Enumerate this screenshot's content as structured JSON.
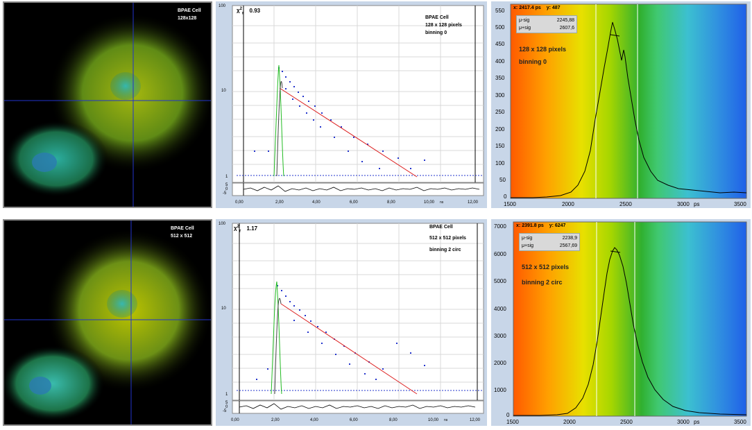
{
  "rows": [
    {
      "image": {
        "title": "BPAE Cell",
        "subtitle": "128x128"
      },
      "decay": {
        "chi_label": "χ",
        "chi_sub": "r",
        "chi_sup": "2",
        "chi_value": "0.93",
        "info": [
          "BPAE Cell",
          "128 x 128 pixels",
          "binning 0"
        ],
        "y_ticks": [
          "100",
          "10",
          "1"
        ],
        "res_ticks": [
          "5",
          "0",
          "-5"
        ],
        "x_ticks": [
          "0,00",
          "2,00",
          "4,00",
          "6,00",
          "8,00",
          "10,00",
          "12,00"
        ],
        "x_unit": "ns"
      },
      "hist": {
        "cursor_x_label": "x:",
        "cursor_x": "2417.4",
        "cursor_x_unit": "ps",
        "cursor_y_label": "y:",
        "cursor_y": "487",
        "mu_minus_label": "μ-sig",
        "mu_minus": "2245,88",
        "mu_plus_label": "μ+sig",
        "mu_plus": "2607,6",
        "title1": "128 x 128 pixels",
        "title2": "binning 0",
        "y_ticks": [
          "550",
          "500",
          "450",
          "400",
          "350",
          "300",
          "250",
          "200",
          "150",
          "100",
          "50",
          "0"
        ],
        "x_ticks": [
          "1500",
          "2000",
          "2500",
          "3000",
          "3500"
        ],
        "x_unit": "ps"
      }
    },
    {
      "image": {
        "title": "BPAE Cell",
        "subtitle": "512 x 512"
      },
      "decay": {
        "chi_label": "χ",
        "chi_sub": "r",
        "chi_sup": "2",
        "chi_value": "1.17",
        "info": [
          "BPAE Cell",
          "512 x 512 pixels",
          "binning 2 circ"
        ],
        "y_ticks": [
          "100",
          "10",
          "1"
        ],
        "res_ticks": [
          "5",
          "0",
          "-5"
        ],
        "x_ticks": [
          "0,00",
          "2,00",
          "4,00",
          "6,00",
          "8,00",
          "10,00",
          "12,00"
        ],
        "x_unit": "ns"
      },
      "hist": {
        "cursor_x_label": "x:",
        "cursor_x": "2391.8",
        "cursor_x_unit": "ps",
        "cursor_y_label": "y:",
        "cursor_y": "6247",
        "mu_minus_label": "μ-sig",
        "mu_minus": "2238,9",
        "mu_plus_label": "μ+sig",
        "mu_plus": "2567,69",
        "title1": "512 x 512 pixels",
        "title2": "binning 2 circ",
        "y_ticks": [
          "7000",
          "6000",
          "5000",
          "4000",
          "3000",
          "2000",
          "1000",
          "0"
        ],
        "x_ticks": [
          "1500",
          "2000",
          "2500",
          "3000",
          "3500"
        ],
        "x_unit": "ps"
      }
    }
  ],
  "colors": {
    "cell_green": "#4a7a1c",
    "cell_yellow": "#c8d400",
    "nucleus_cyan": "#2fb0a8",
    "crosshair": "#2233cc",
    "decay_points": "#2233cc",
    "fit_line": "#dd2020",
    "irf_line": "#22bb22",
    "histogram_line": "#000000"
  }
}
